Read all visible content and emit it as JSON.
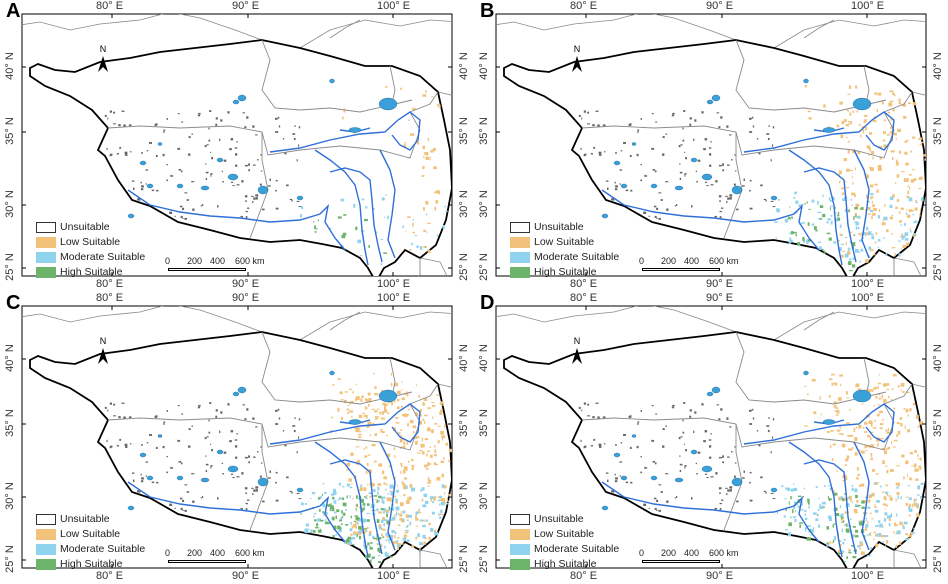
{
  "panels": [
    {
      "letter": "A"
    },
    {
      "letter": "B"
    },
    {
      "letter": "C"
    },
    {
      "letter": "D"
    }
  ],
  "axes": {
    "x_ticks": [
      "80° E",
      "90° E",
      "100° E"
    ],
    "y_ticks": [
      "40° N",
      "35° N",
      "30° N",
      "25° N"
    ]
  },
  "north_arrow": "N",
  "legend": [
    {
      "label": "Unsuitable",
      "color": "#ffffff",
      "border": "#333333"
    },
    {
      "label": "Low Suitable",
      "color": "#f2c27a"
    },
    {
      "label": "Moderate Suitable",
      "color": "#8fd3ef"
    },
    {
      "label": "High Suitable",
      "color": "#6cb46a"
    }
  ],
  "scale_bar": {
    "labels": [
      "0",
      "200",
      "400",
      "600 km"
    ]
  },
  "colors": {
    "boundary": "#000000",
    "admin_lines": "#8a8a8a",
    "rivers": "#2f6fd8",
    "lakes": "#3aa0d8",
    "low": "#f2c27a",
    "moderate": "#8fd3ef",
    "high": "#6cb46a"
  }
}
